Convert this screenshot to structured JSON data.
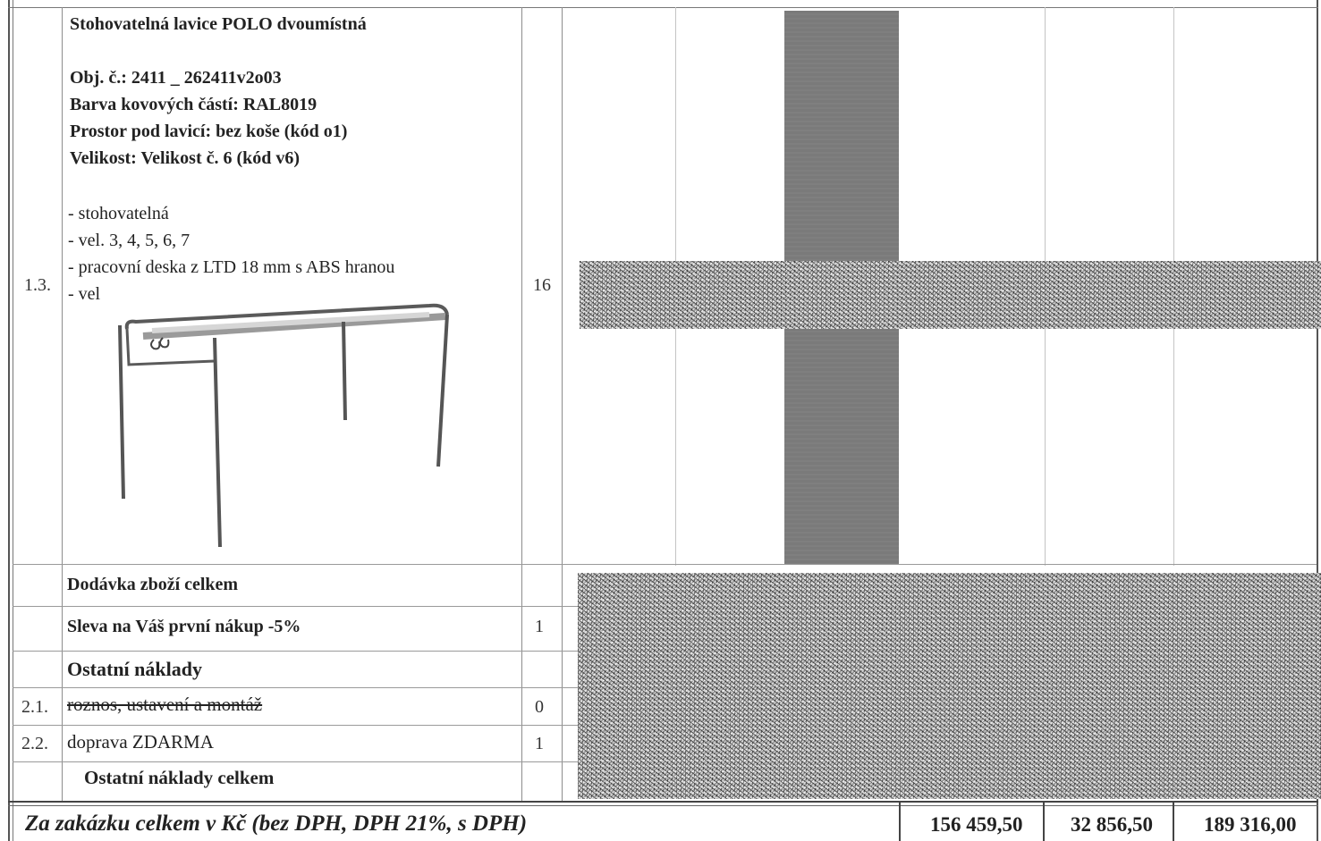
{
  "item_1_3": {
    "number": "1.3.",
    "title": "Stohovatelná lavice POLO dvoumístná",
    "obj": "Obj. č.: 2411 _ 262411v2o03",
    "color": "Barva kovových částí: RAL8019",
    "space": "Prostor pod lavicí: bez koše (kód o1)",
    "size": "Velikost: Velikost č. 6 (kód v6)",
    "bullets": [
      "- stohovatelná",
      "- vel. 3, 4, 5, 6, 7",
      "- pracovní deska z LTD 18 mm s ABS hranou",
      "- vel"
    ],
    "quantity": "16"
  },
  "rows": {
    "goods_total": "Dodávka zboží celkem",
    "discount_label": "Sleva na Váš první nákup -5%",
    "discount_qty": "1",
    "other_costs": "Ostatní náklady",
    "r21_num": "2.1.",
    "r21_label": "roznos, ustavení  a montáž",
    "r21_qty": "0",
    "r22_num": "2.2.",
    "r22_label": "doprava ZDARMA",
    "r22_qty": "1",
    "other_total": "Ostatní náklady celkem"
  },
  "footer": {
    "label": "Za zakázku celkem v Kč (bez DPH, DPH 21%, s DPH)",
    "without_vat": "156 459,50",
    "vat": "32 856,50",
    "with_vat": "189 316,00"
  }
}
